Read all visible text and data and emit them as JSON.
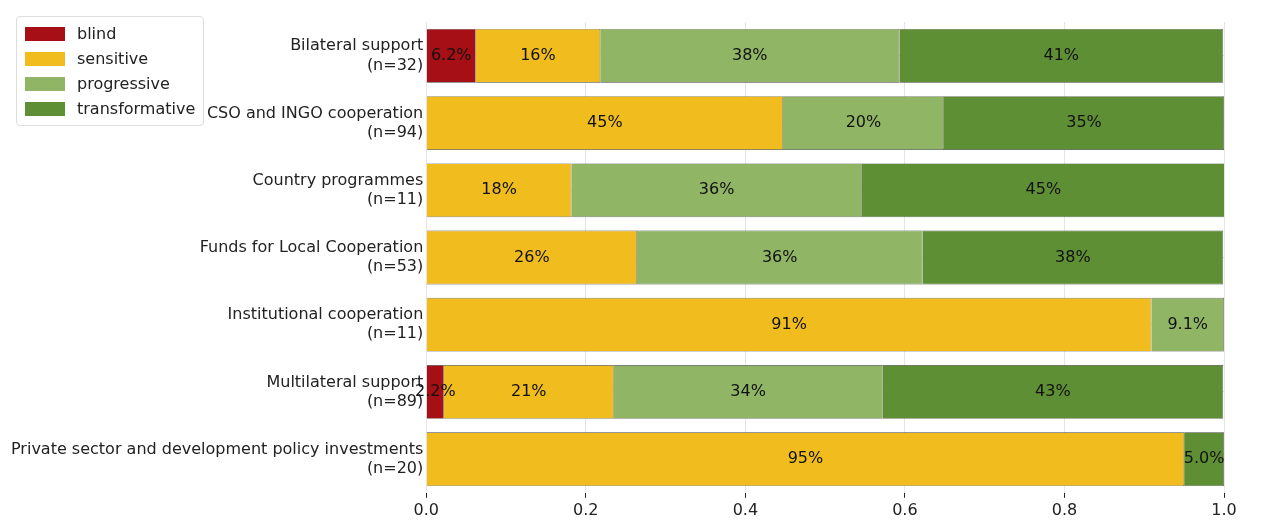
{
  "chart_data": {
    "type": "bar",
    "orientation": "horizontal",
    "stacked": true,
    "categories": [
      "Bilateral support\n(n=32)",
      "CSO and INGO cooperation\n(n=94)",
      "Country programmes\n(n=11)",
      "Funds for Local Cooperation\n(n=53)",
      "Institutional cooperation\n(n=11)",
      "Multilateral support\n(n=89)",
      "Private sector and development policy investments\n(n=20)"
    ],
    "series": [
      {
        "name": "blind",
        "color": "#a50f15",
        "values": [
          0.062,
          null,
          null,
          null,
          null,
          0.022,
          null
        ],
        "value_labels": [
          "6.2%",
          null,
          null,
          null,
          null,
          "2.2%",
          null
        ]
      },
      {
        "name": "sensitive",
        "color": "#f0bc1e",
        "values": [
          0.156,
          0.447,
          0.182,
          0.264,
          0.909,
          0.213,
          0.95
        ],
        "value_labels": [
          "16%",
          "45%",
          "18%",
          "26%",
          "91%",
          "21%",
          "95%"
        ]
      },
      {
        "name": "progressive",
        "color": "#8fb565",
        "values": [
          0.375,
          0.202,
          0.364,
          0.358,
          0.091,
          0.337,
          null
        ],
        "value_labels": [
          "38%",
          "20%",
          "36%",
          "36%",
          "9.1%",
          "34%",
          null
        ]
      },
      {
        "name": "transformative",
        "color": "#5f8f35",
        "values": [
          0.406,
          0.351,
          0.455,
          0.377,
          null,
          0.427,
          0.05
        ],
        "value_labels": [
          "41%",
          "35%",
          "45%",
          "38%",
          null,
          "43%",
          "5.0%"
        ]
      }
    ],
    "xlim": [
      0,
      1
    ],
    "xticks": [
      {
        "value": 0,
        "label": "0.0"
      },
      {
        "value": 0.2,
        "label": "0.2"
      },
      {
        "value": 0.4,
        "label": "0.4"
      },
      {
        "value": 0.6,
        "label": "0.6"
      },
      {
        "value": 0.8,
        "label": "0.8"
      },
      {
        "value": 1,
        "label": "1.0"
      }
    ],
    "grid": true,
    "legend": "top left"
  }
}
